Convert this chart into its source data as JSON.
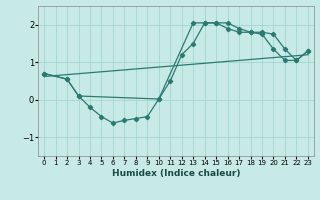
{
  "xlabel": "Humidex (Indice chaleur)",
  "ylabel": "",
  "background_color": "#c8eae6",
  "grid_color": "#a8d8d4",
  "line_color": "#2a7a72",
  "xlim": [
    -0.5,
    23.5
  ],
  "ylim": [
    -1.5,
    2.5
  ],
  "yticks": [
    -1,
    0,
    1,
    2
  ],
  "xticks": [
    0,
    1,
    2,
    3,
    4,
    5,
    6,
    7,
    8,
    9,
    10,
    11,
    12,
    13,
    14,
    15,
    16,
    17,
    18,
    19,
    20,
    21,
    22,
    23
  ],
  "line1_x": [
    0,
    2,
    3,
    4,
    5,
    6,
    7,
    8,
    9,
    10,
    11,
    12,
    13,
    14,
    15,
    16,
    17,
    18,
    19,
    20,
    21,
    22,
    23
  ],
  "line1_y": [
    0.7,
    0.55,
    0.1,
    -0.2,
    -0.45,
    -0.62,
    -0.55,
    -0.5,
    -0.45,
    0.02,
    0.5,
    1.2,
    1.5,
    2.05,
    2.05,
    2.05,
    1.9,
    1.8,
    1.8,
    1.75,
    1.35,
    1.05,
    1.3
  ],
  "line2_x": [
    0,
    2,
    3,
    10,
    13,
    14,
    15,
    16,
    17,
    18,
    19,
    20,
    21,
    22,
    23
  ],
  "line2_y": [
    0.7,
    0.55,
    0.1,
    0.02,
    2.05,
    2.05,
    2.05,
    1.9,
    1.8,
    1.8,
    1.75,
    1.35,
    1.05,
    1.05,
    1.3
  ],
  "line3_x": [
    0,
    23
  ],
  "line3_y": [
    0.62,
    1.2
  ]
}
